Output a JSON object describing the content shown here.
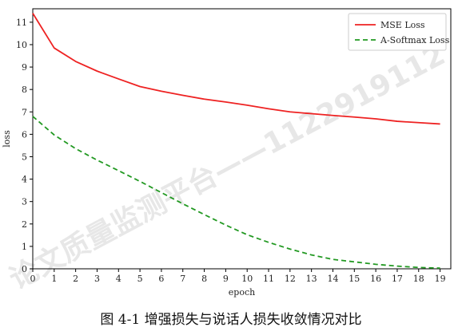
{
  "caption": "图 4-1 增强损失与说话人损失收敛情况对比",
  "watermark": "论文质量监测平台——1122919112",
  "chart_data": {
    "type": "line",
    "title": "",
    "xlabel": "epoch",
    "ylabel": "loss",
    "x": [
      0,
      1,
      2,
      3,
      4,
      5,
      6,
      7,
      8,
      9,
      10,
      11,
      12,
      13,
      14,
      15,
      16,
      17,
      18,
      19
    ],
    "xlim": [
      0,
      19.5
    ],
    "ylim": [
      0,
      11.6
    ],
    "xticks": [
      0,
      1,
      2,
      3,
      4,
      5,
      6,
      7,
      8,
      9,
      10,
      11,
      12,
      13,
      14,
      15,
      16,
      17,
      18,
      19
    ],
    "yticks": [
      0,
      1,
      2,
      3,
      4,
      5,
      6,
      7,
      8,
      9,
      10,
      11
    ],
    "grid": false,
    "legend_position": "top-right",
    "series": [
      {
        "name": "MSE Loss",
        "color": "#ee2222",
        "style": "solid",
        "values": [
          11.4,
          9.85,
          9.25,
          8.82,
          8.47,
          8.13,
          7.92,
          7.74,
          7.57,
          7.44,
          7.3,
          7.14,
          7.0,
          6.92,
          6.84,
          6.77,
          6.69,
          6.58,
          6.52,
          6.46
        ]
      },
      {
        "name": "A-Softmax Loss",
        "color": "#229922",
        "style": "dashed",
        "values": [
          6.8,
          5.97,
          5.36,
          4.85,
          4.38,
          3.9,
          3.4,
          2.9,
          2.42,
          1.95,
          1.52,
          1.18,
          0.88,
          0.62,
          0.42,
          0.31,
          0.2,
          0.12,
          0.06,
          0.03
        ]
      }
    ]
  }
}
